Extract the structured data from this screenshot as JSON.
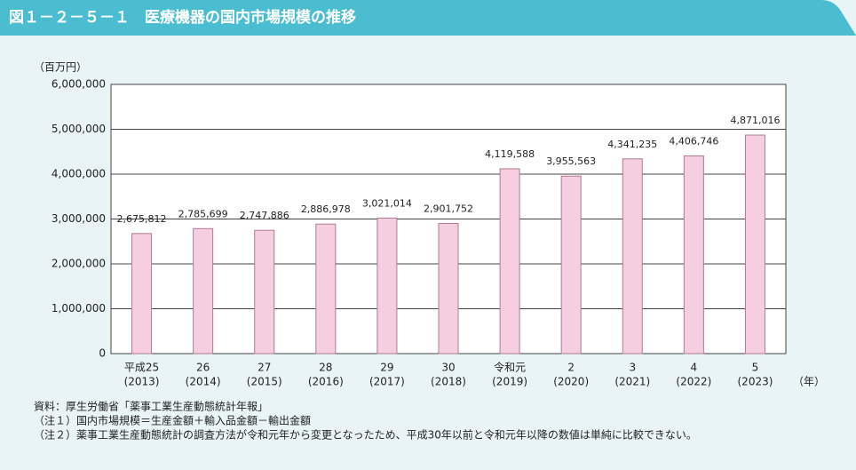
{
  "chart_data": {
    "type": "bar",
    "title": "図１－２－５－１　医療機器の国内市場規模の推移",
    "y_label": "（百万円）",
    "x_unit": "（年）",
    "categories": [
      [
        "平成25",
        "(2013)"
      ],
      [
        "26",
        "(2014)"
      ],
      [
        "27",
        "(2015)"
      ],
      [
        "28",
        "(2016)"
      ],
      [
        "29",
        "(2017)"
      ],
      [
        "30",
        "(2018)"
      ],
      [
        "令和元",
        "(2019)"
      ],
      [
        "2",
        "(2020)"
      ],
      [
        "3",
        "(2021)"
      ],
      [
        "4",
        "(2022)"
      ],
      [
        "5",
        "(2023)"
      ]
    ],
    "values": [
      2675812,
      2785699,
      2747886,
      2886978,
      3021014,
      2901752,
      4119588,
      3955563,
      4341235,
      4406746,
      4871016
    ],
    "value_labels": [
      "2,675,812",
      "2,785,699",
      "2,747,886",
      "2,886,978",
      "3,021,014",
      "2,901,752",
      "4,119,588",
      "3,955,563",
      "4,341,235",
      "4,406,746",
      "4,871,016"
    ],
    "color": "#f5cfe0",
    "ylim": [
      0,
      6000000
    ],
    "yticks": [
      0,
      {
        "value": 1000000,
        "label": "1,000,000"
      },
      {
        "value": 2000000,
        "label": "2,000,000"
      },
      {
        "value": 3000000,
        "label": "3,000,000"
      },
      {
        "value": 4000000,
        "label": "4,000,000"
      },
      {
        "value": 5000000,
        "label": "5,000,000"
      },
      {
        "value": 6000000,
        "label": "6,000,000"
      }
    ],
    "grid": true,
    "notes": [
      "資料：厚生労働省「薬事工業生産動態統計年報」",
      "（注１）国内市場規模＝生産金額＋輸入品金額－輸出金額",
      "（注２）薬事工業生産動態統計の調査方法が令和元年から変更となったため、平成30年以前と令和元年以降の数値は単純に比較できない。"
    ]
  }
}
